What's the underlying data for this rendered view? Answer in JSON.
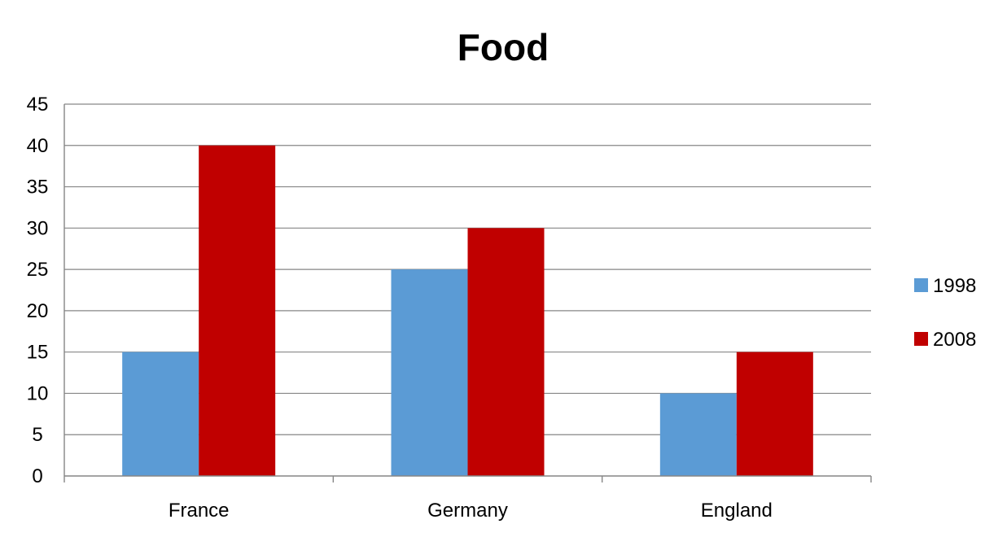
{
  "chart_data": {
    "type": "bar",
    "title": "Food",
    "xlabel": "",
    "ylabel": "",
    "categories": [
      "France",
      "Germany",
      "England"
    ],
    "series": [
      {
        "name": "1998",
        "color": "#5B9BD5",
        "values": [
          15,
          25,
          10
        ]
      },
      {
        "name": "2008",
        "color": "#C00000",
        "values": [
          40,
          30,
          15
        ]
      }
    ],
    "ylim": [
      0,
      45
    ],
    "ytick_step": 5,
    "yticks": [
      "0",
      "5",
      "10",
      "15",
      "20",
      "25",
      "30",
      "35",
      "40",
      "45"
    ],
    "grid": true,
    "legend_position": "right"
  }
}
